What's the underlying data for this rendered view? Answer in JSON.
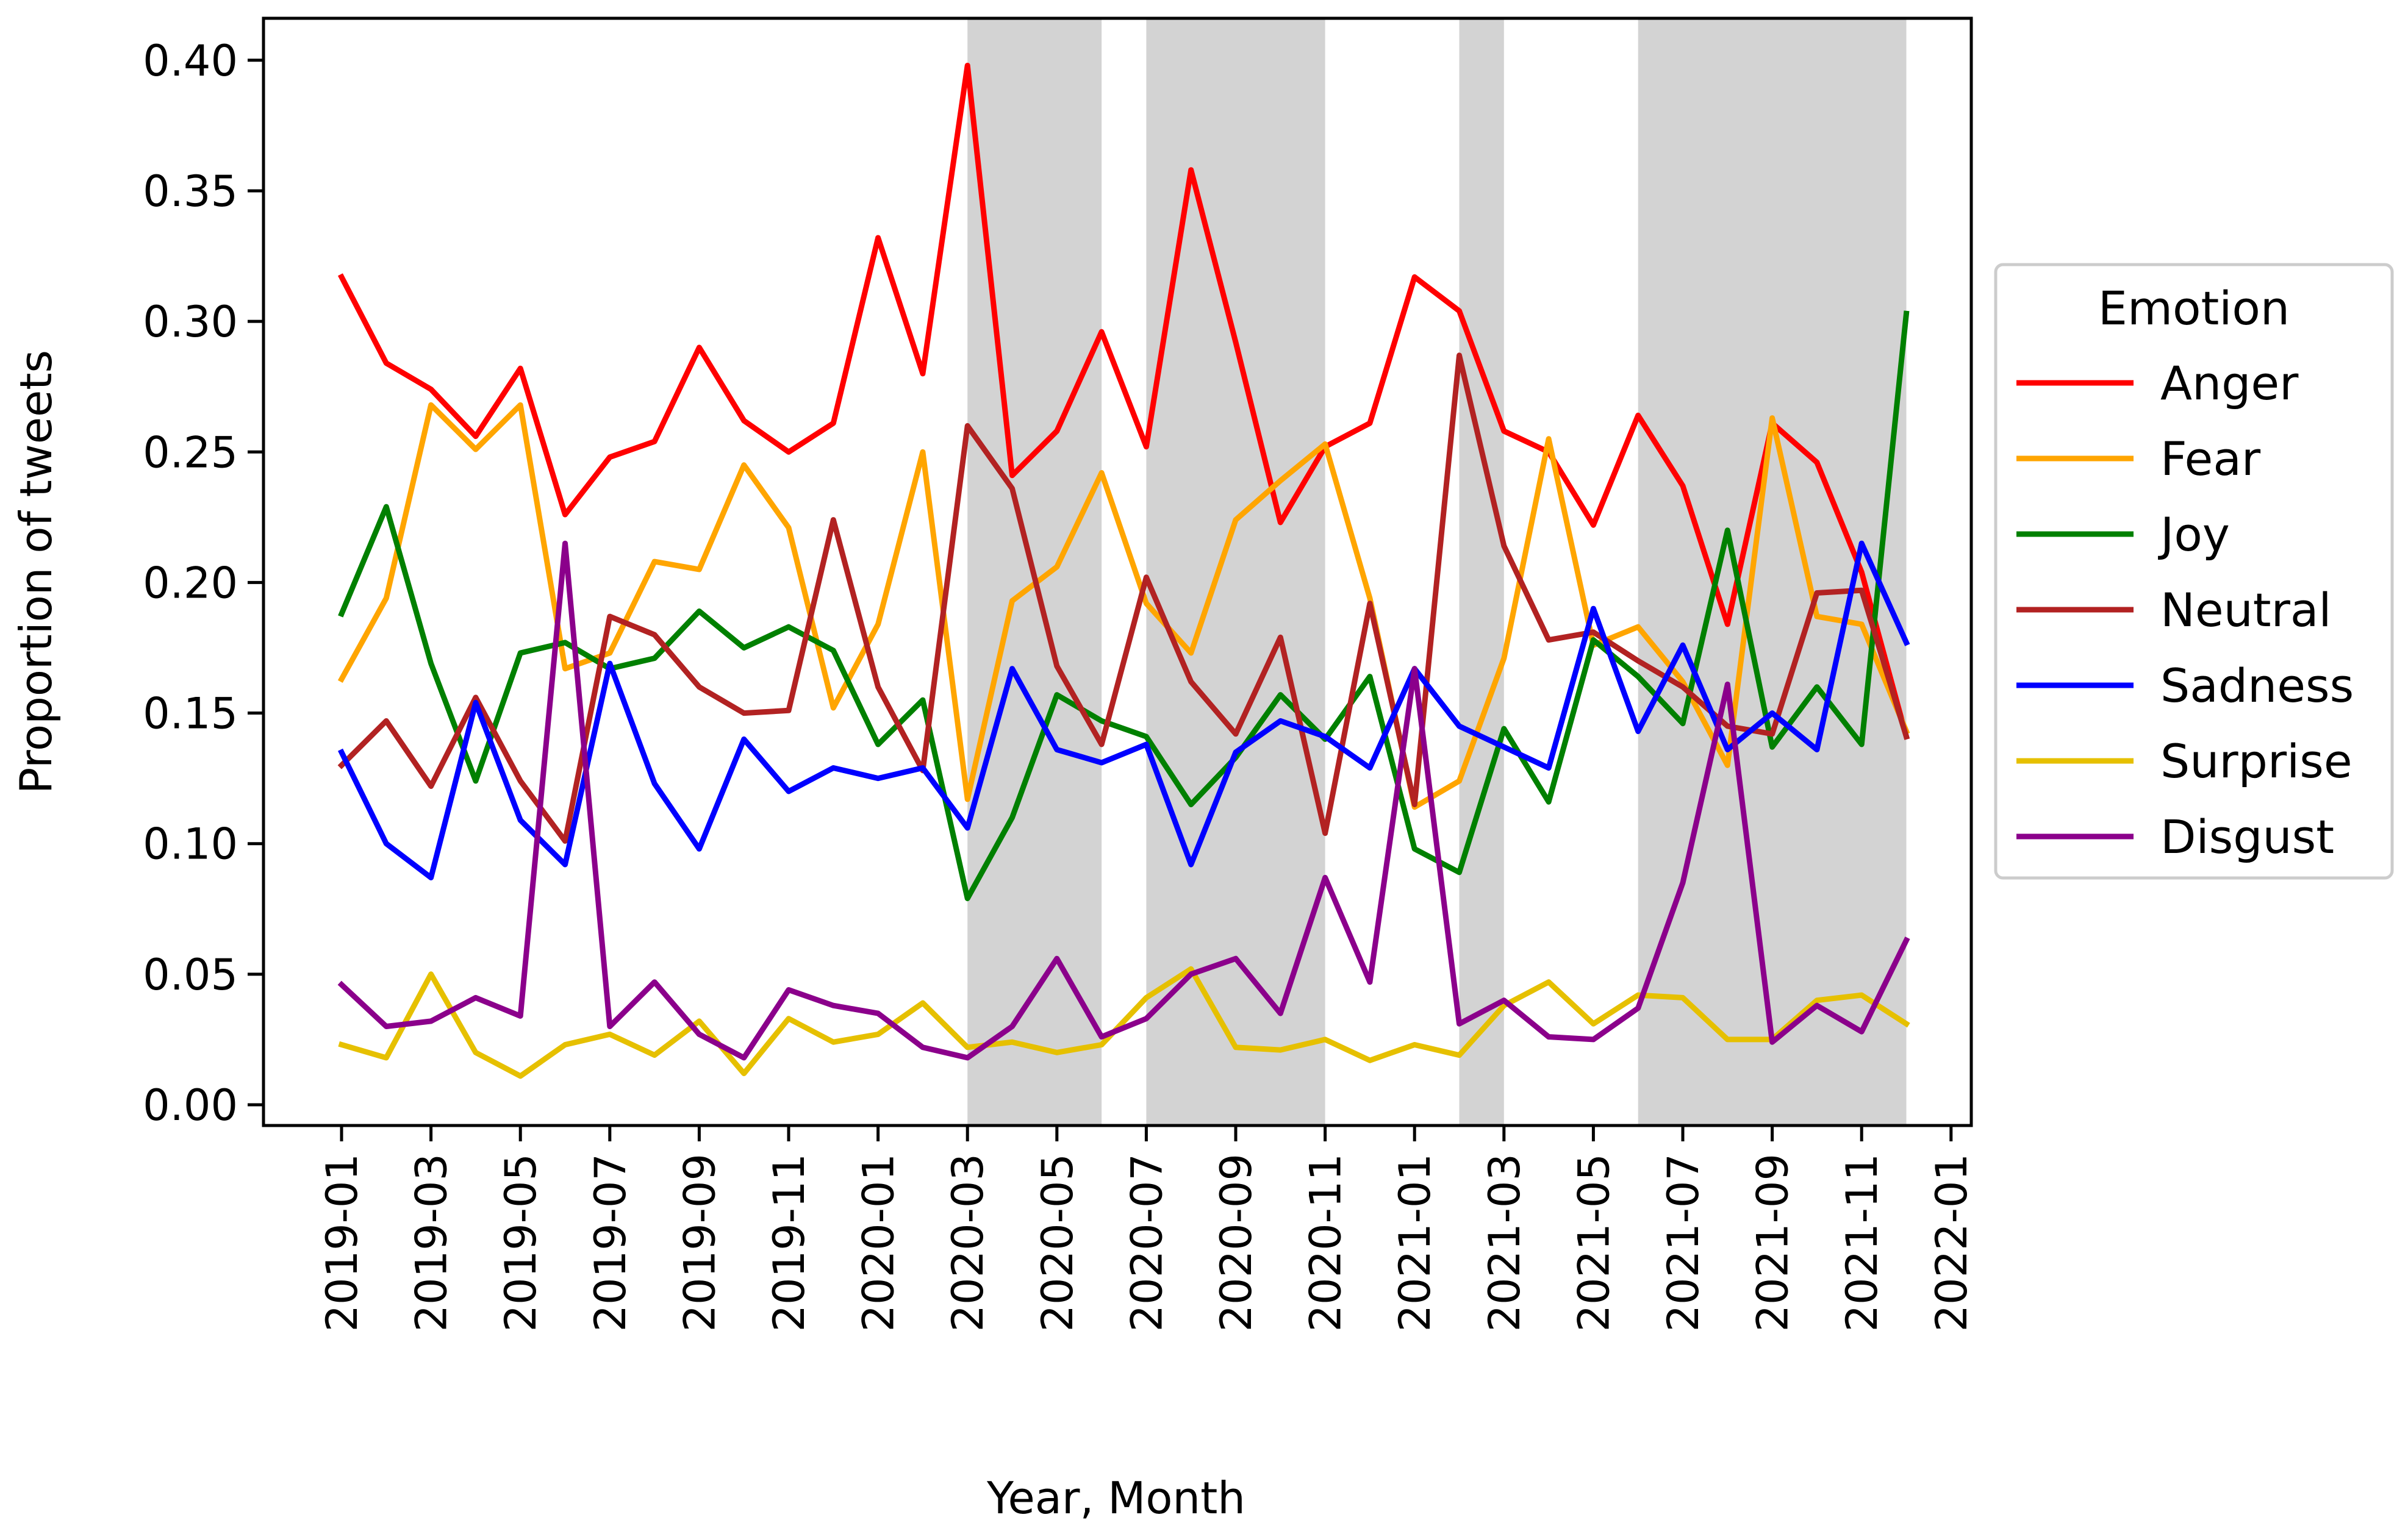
{
  "chart_data": {
    "type": "line",
    "xlabel": "Year, Month",
    "ylabel": "Proportion of tweets",
    "ylim": [
      0.0,
      0.4
    ],
    "y_ticks": [
      "0.00",
      "0.05",
      "0.10",
      "0.15",
      "0.20",
      "0.25",
      "0.30",
      "0.35",
      "0.40"
    ],
    "x_ticks": [
      "2019-01",
      "2019-03",
      "2019-05",
      "2019-07",
      "2019-09",
      "2019-11",
      "2020-01",
      "2020-03",
      "2020-05",
      "2020-07",
      "2020-09",
      "2020-11",
      "2021-01",
      "2021-03",
      "2021-05",
      "2021-07",
      "2021-09",
      "2021-11",
      "2022-01"
    ],
    "x": [
      "2019-01",
      "2019-02",
      "2019-03",
      "2019-04",
      "2019-05",
      "2019-06",
      "2019-07",
      "2019-08",
      "2019-09",
      "2019-10",
      "2019-11",
      "2019-12",
      "2020-01",
      "2020-02",
      "2020-03",
      "2020-04",
      "2020-05",
      "2020-06",
      "2020-07",
      "2020-08",
      "2020-09",
      "2020-10",
      "2020-11",
      "2020-12",
      "2021-01",
      "2021-02",
      "2021-03",
      "2021-04",
      "2021-05",
      "2021-06",
      "2021-07",
      "2021-08",
      "2021-09",
      "2021-10",
      "2021-11",
      "2021-12"
    ],
    "shaded_periods": [
      {
        "start": "2020-03",
        "end": "2020-06"
      },
      {
        "start": "2020-07",
        "end": "2020-11"
      },
      {
        "start": "2021-02",
        "end": "2021-03"
      },
      {
        "start": "2021-06",
        "end": "2021-12"
      }
    ],
    "shade_color": "#d3d3d3",
    "grid": false,
    "legend": {
      "title": "Emotion",
      "placement": "outside-right"
    },
    "series": [
      {
        "name": "Anger",
        "color": "#ff0000",
        "values": [
          0.317,
          0.284,
          0.274,
          0.256,
          0.282,
          0.226,
          0.248,
          0.254,
          0.29,
          0.262,
          0.25,
          0.261,
          0.332,
          0.28,
          0.398,
          0.241,
          0.258,
          0.296,
          0.252,
          0.358,
          0.292,
          0.223,
          0.252,
          0.261,
          0.317,
          0.304,
          0.258,
          0.25,
          0.222,
          0.264,
          0.237,
          0.184,
          0.261,
          0.246,
          0.204,
          0.141
        ]
      },
      {
        "name": "Fear",
        "color": "#ffa500",
        "values": [
          0.163,
          0.194,
          0.268,
          0.251,
          0.268,
          0.167,
          0.173,
          0.208,
          0.205,
          0.245,
          0.221,
          0.152,
          0.184,
          0.25,
          0.117,
          0.193,
          0.206,
          0.242,
          0.192,
          0.173,
          0.224,
          0.239,
          0.253,
          0.194,
          0.114,
          0.124,
          0.171,
          0.255,
          0.176,
          0.183,
          0.162,
          0.13,
          0.263,
          0.187,
          0.184,
          0.143
        ]
      },
      {
        "name": "Joy",
        "color": "#008000",
        "values": [
          0.188,
          0.229,
          0.169,
          0.124,
          0.173,
          0.177,
          0.167,
          0.171,
          0.189,
          0.175,
          0.183,
          0.174,
          0.138,
          0.155,
          0.079,
          0.11,
          0.157,
          0.147,
          0.141,
          0.115,
          0.133,
          0.157,
          0.14,
          0.164,
          0.098,
          0.089,
          0.144,
          0.116,
          0.178,
          0.164,
          0.146,
          0.22,
          0.137,
          0.16,
          0.138,
          0.303
        ]
      },
      {
        "name": "Neutral",
        "color": "#b22222",
        "values": [
          0.13,
          0.147,
          0.122,
          0.156,
          0.124,
          0.101,
          0.187,
          0.18,
          0.16,
          0.15,
          0.151,
          0.224,
          0.16,
          0.128,
          0.26,
          0.236,
          0.168,
          0.138,
          0.202,
          0.162,
          0.142,
          0.179,
          0.104,
          0.192,
          0.115,
          0.287,
          0.214,
          0.178,
          0.181,
          0.17,
          0.16,
          0.145,
          0.142,
          0.196,
          0.197,
          0.141
        ]
      },
      {
        "name": "Sadness",
        "color": "#0000ff",
        "values": [
          0.135,
          0.1,
          0.087,
          0.154,
          0.109,
          0.092,
          0.169,
          0.123,
          0.098,
          0.14,
          0.12,
          0.129,
          0.125,
          0.129,
          0.106,
          0.167,
          0.136,
          0.131,
          0.138,
          0.092,
          0.135,
          0.147,
          0.141,
          0.129,
          0.167,
          0.145,
          0.137,
          0.129,
          0.19,
          0.143,
          0.176,
          0.136,
          0.15,
          0.136,
          0.215,
          0.177
        ]
      },
      {
        "name": "Surprise",
        "color": "#e6c000",
        "values": [
          0.023,
          0.018,
          0.05,
          0.02,
          0.011,
          0.023,
          0.027,
          0.019,
          0.032,
          0.012,
          0.033,
          0.024,
          0.027,
          0.039,
          0.022,
          0.024,
          0.02,
          0.023,
          0.041,
          0.052,
          0.022,
          0.021,
          0.025,
          0.017,
          0.023,
          0.019,
          0.038,
          0.047,
          0.031,
          0.042,
          0.041,
          0.025,
          0.025,
          0.04,
          0.042,
          0.031
        ]
      },
      {
        "name": "Disgust",
        "color": "#8b008b",
        "values": [
          0.046,
          0.03,
          0.032,
          0.041,
          0.034,
          0.215,
          0.03,
          0.047,
          0.027,
          0.018,
          0.044,
          0.038,
          0.035,
          0.022,
          0.018,
          0.03,
          0.056,
          0.026,
          0.033,
          0.05,
          0.056,
          0.035,
          0.087,
          0.047,
          0.167,
          0.031,
          0.04,
          0.026,
          0.025,
          0.037,
          0.085,
          0.161,
          0.024,
          0.038,
          0.028,
          0.063
        ]
      }
    ]
  }
}
